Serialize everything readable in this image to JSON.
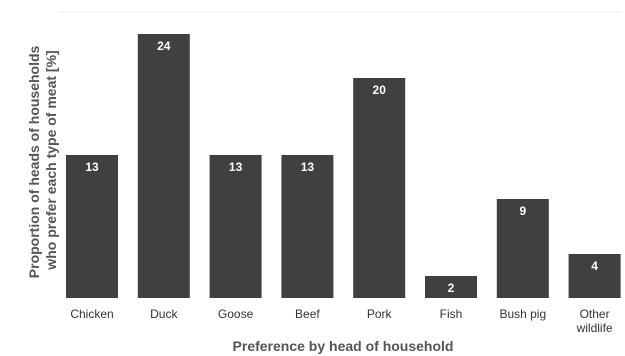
{
  "chart_data": {
    "type": "bar",
    "categories": [
      "Chicken",
      "Duck",
      "Goose",
      "Beef",
      "Pork",
      "Fish",
      "Bush pig",
      "Other wildlife"
    ],
    "values": [
      13,
      24,
      13,
      13,
      20,
      2,
      9,
      4
    ],
    "data_labels": [
      "13",
      "24",
      "13",
      "13",
      "20",
      "2",
      "9",
      "4"
    ],
    "xlabel": "Preference by head of household",
    "ylabel_lines": [
      "Proportion of heads of households",
      "who prefer each type of meat [%]"
    ],
    "ylim": [
      0,
      24
    ],
    "grid": false,
    "bar_color": "#404040",
    "label_color": "#ffffff"
  }
}
